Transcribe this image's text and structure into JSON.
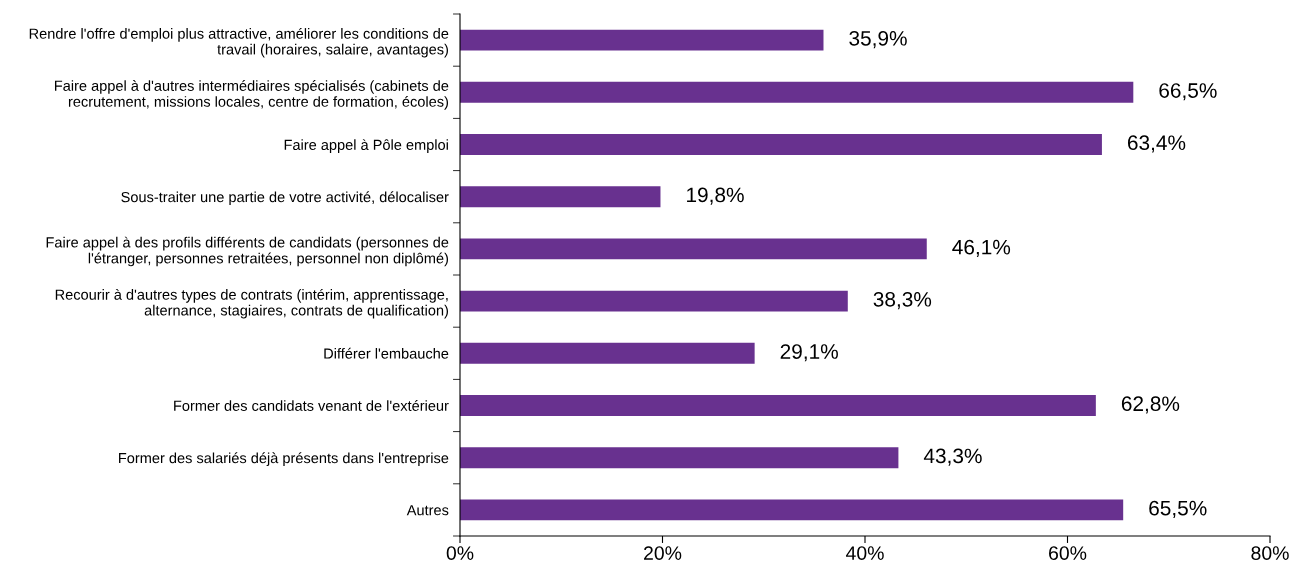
{
  "chart_data": {
    "type": "bar",
    "orientation": "horizontal",
    "categories": [
      "Rendre l'offre d'emploi plus attractive, améliorer les conditions de\ntravail (horaires, salaire, avantages)",
      "Faire appel à d'autres intermédiaires spécialisés (cabinets de\nrecrutement, missions locales, centre de formation, écoles)",
      "Faire appel à Pôle emploi",
      "Sous-traiter une partie de votre activité, délocaliser",
      "Faire appel à des profils différents de candidats (personnes de\nl'étranger, personnes retraitées, personnel non diplômé)",
      "Recourir à d'autres types de contrats (intérim, apprentissage,\nalternance, stagiaires, contrats de qualification)",
      "Différer l'embauche",
      "Former des candidats venant de l'extérieur",
      "Former des salariés déjà présents dans l'entreprise",
      "Autres"
    ],
    "values": [
      35.9,
      66.5,
      63.4,
      19.8,
      46.1,
      38.3,
      29.1,
      62.8,
      43.3,
      65.5
    ],
    "value_labels": [
      "35,9%",
      "66,5%",
      "63,4%",
      "19,8%",
      "46,1%",
      "38,3%",
      "29,1%",
      "62,8%",
      "43,3%",
      "65,5%"
    ],
    "color": "#68318f",
    "xlim": [
      0,
      80
    ],
    "xticks": [
      {
        "value": 0,
        "label": "0%"
      },
      {
        "value": 20,
        "label": "20%"
      },
      {
        "value": 40,
        "label": "40%"
      },
      {
        "value": 60,
        "label": "60%"
      },
      {
        "value": 80,
        "label": "80%"
      }
    ],
    "grid": false,
    "legend": false
  }
}
